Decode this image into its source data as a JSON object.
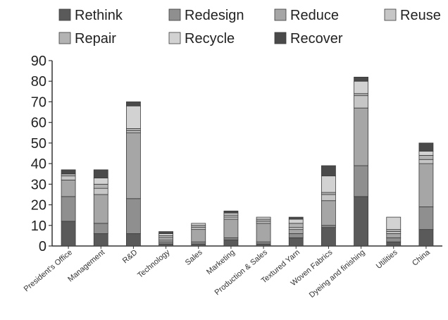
{
  "chart_data": {
    "type": "bar",
    "stacked": true,
    "title": "",
    "xlabel": "",
    "ylabel": "",
    "ylim": [
      0,
      90
    ],
    "yticks": [
      0,
      10,
      20,
      30,
      40,
      50,
      60,
      70,
      80,
      90
    ],
    "grid": false,
    "legend_position": "top",
    "categories": [
      "President's Office",
      "Management",
      "R&D",
      "Technology",
      "Sales",
      "Marketing",
      "Production & Sales",
      "Textured Yarn",
      "Woven Fabrics",
      "Dyeing and finishing",
      "Utilities",
      "China"
    ],
    "series": [
      {
        "name": "Rethink",
        "color": "#5a5a5a",
        "values": [
          12,
          6,
          6,
          1,
          1,
          3,
          1,
          4,
          9,
          24,
          2,
          8
        ]
      },
      {
        "name": "Redesign",
        "color": "#8f8f8f",
        "values": [
          12,
          5,
          17,
          1,
          1,
          1,
          1,
          2,
          1,
          15,
          2,
          11
        ]
      },
      {
        "name": "Reduce",
        "color": "#a6a6a6",
        "values": [
          8,
          14,
          32,
          1,
          6,
          9,
          9,
          2,
          12,
          28,
          2,
          21
        ]
      },
      {
        "name": "Reuse",
        "color": "#c6c6c6",
        "values": [
          2,
          3,
          1,
          1,
          1,
          1,
          1,
          1,
          3,
          6,
          1,
          2
        ]
      },
      {
        "name": "Repair",
        "color": "#b3b3b3",
        "values": [
          1,
          2,
          1,
          1,
          1,
          1,
          1,
          2,
          1,
          1,
          1,
          2
        ]
      },
      {
        "name": "Recycle",
        "color": "#d2d2d2",
        "values": [
          0,
          3,
          11,
          1,
          1,
          1,
          1,
          2,
          8,
          6,
          6,
          2
        ]
      },
      {
        "name": "Recover",
        "color": "#4a4a4a",
        "values": [
          2,
          4,
          2,
          1,
          0,
          1,
          0,
          1,
          5,
          2,
          0,
          4
        ]
      }
    ]
  }
}
